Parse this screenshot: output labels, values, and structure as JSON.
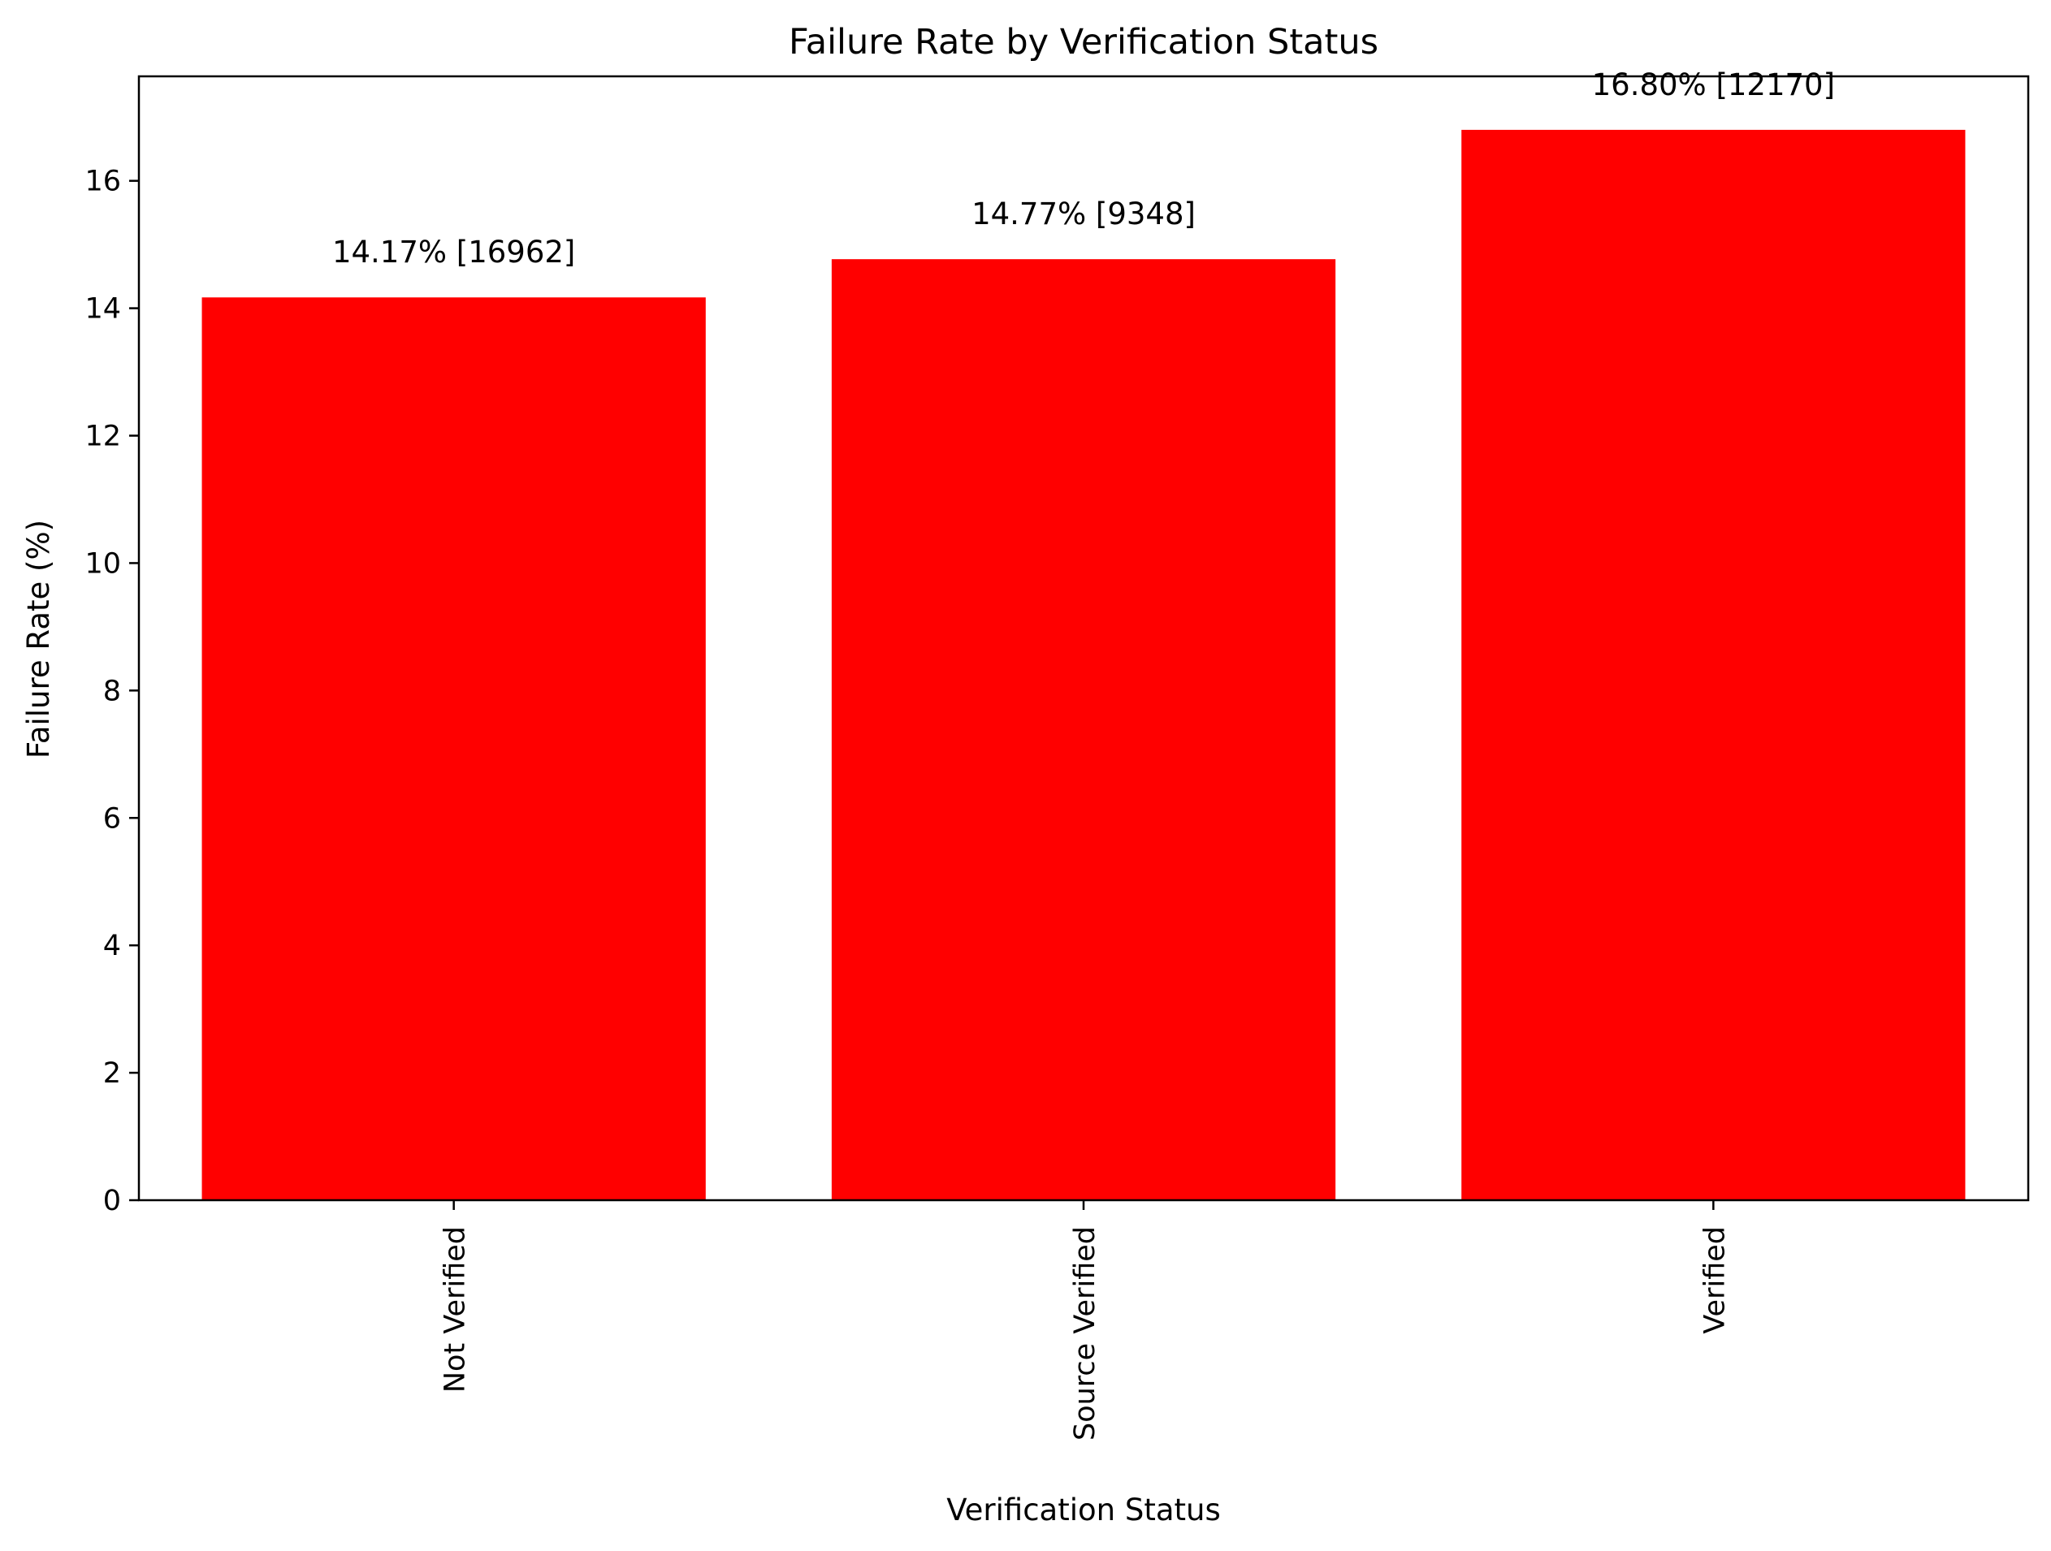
{
  "chart_data": {
    "type": "bar",
    "title": "Failure Rate by Verification Status",
    "xlabel": "Verification Status",
    "ylabel": "Failure Rate (%)",
    "categories": [
      "Not Verified",
      "Source Verified",
      "Verified"
    ],
    "values": [
      14.17,
      14.77,
      16.8
    ],
    "data_labels": [
      "14.17% [16962]",
      "14.77% [9348]",
      "16.80% [12170]"
    ],
    "ylim": [
      0,
      17.64
    ],
    "yticks": [
      0,
      2,
      4,
      6,
      8,
      10,
      12,
      14,
      16
    ],
    "bar_color": "#ff0000",
    "grid": false,
    "legend": "none"
  }
}
